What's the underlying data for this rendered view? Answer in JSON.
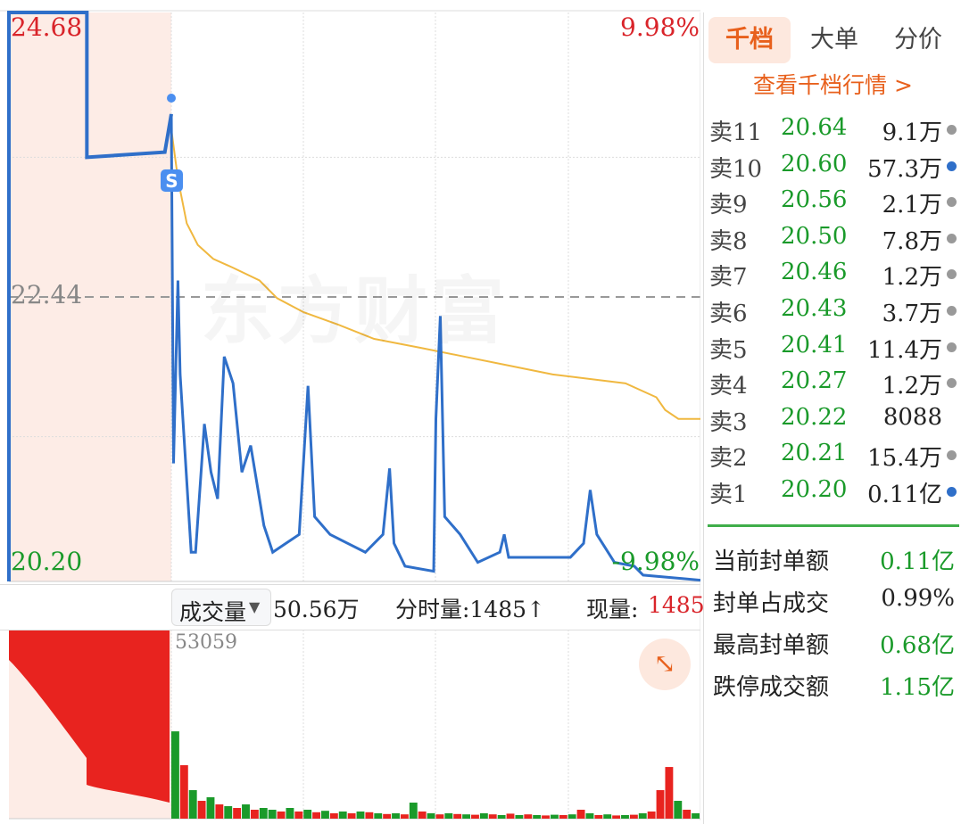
{
  "chart_data": {
    "type": "line",
    "title": "",
    "price_axis": {
      "max_label": "24.68",
      "mid_label": "22.44",
      "min_label": "20.20",
      "ylim": [
        20.2,
        24.68
      ],
      "pct_max_label": "9.98%",
      "pct_min_label": "-9.98%"
    },
    "time_range_minutes": [
      0,
      240
    ],
    "grid": true,
    "auction_series": [
      [
        0,
        20.2
      ],
      [
        0,
        24.68
      ],
      [
        4.8,
        24.68
      ],
      [
        4.8,
        23.54
      ],
      [
        9.6,
        23.58
      ],
      [
        10,
        23.88
      ]
    ],
    "price_series": [
      [
        0,
        23.88
      ],
      [
        1,
        21.13
      ],
      [
        3,
        22.57
      ],
      [
        4,
        21.83
      ],
      [
        7,
        20.99
      ],
      [
        9,
        20.43
      ],
      [
        11,
        20.43
      ],
      [
        15,
        21.44
      ],
      [
        18,
        21.06
      ],
      [
        21,
        20.85
      ],
      [
        24,
        21.97
      ],
      [
        28,
        21.76
      ],
      [
        32,
        21.06
      ],
      [
        36,
        21.27
      ],
      [
        42,
        20.64
      ],
      [
        46,
        20.43
      ],
      [
        52,
        20.5
      ],
      [
        58,
        20.57
      ],
      [
        62,
        21.74
      ],
      [
        65,
        20.71
      ],
      [
        72,
        20.57
      ],
      [
        80,
        20.5
      ],
      [
        88,
        20.43
      ],
      [
        96,
        20.57
      ],
      [
        99,
        21.09
      ],
      [
        101,
        20.5
      ],
      [
        106,
        20.32
      ],
      [
        119,
        20.28
      ],
      [
        120,
        21.48
      ],
      [
        122,
        22.29
      ],
      [
        124,
        20.71
      ],
      [
        131,
        20.57
      ],
      [
        139,
        20.35
      ],
      [
        149,
        20.43
      ],
      [
        151,
        20.57
      ],
      [
        153,
        20.39
      ],
      [
        165,
        20.39
      ],
      [
        181,
        20.39
      ],
      [
        187,
        20.5
      ],
      [
        190,
        20.92
      ],
      [
        193,
        20.57
      ],
      [
        201,
        20.35
      ],
      [
        210,
        20.32
      ],
      [
        214,
        20.25
      ],
      [
        240,
        20.21
      ]
    ],
    "avg_series": [
      [
        0,
        23.76
      ],
      [
        3,
        23.37
      ],
      [
        7,
        23.02
      ],
      [
        12,
        22.85
      ],
      [
        19,
        22.74
      ],
      [
        28,
        22.67
      ],
      [
        40,
        22.57
      ],
      [
        48,
        22.43
      ],
      [
        60,
        22.32
      ],
      [
        76,
        22.22
      ],
      [
        92,
        22.11
      ],
      [
        113,
        22.04
      ],
      [
        133,
        21.97
      ],
      [
        153,
        21.9
      ],
      [
        173,
        21.83
      ],
      [
        206,
        21.76
      ],
      [
        220,
        21.65
      ],
      [
        224,
        21.55
      ],
      [
        230,
        21.48
      ],
      [
        240,
        21.48
      ]
    ],
    "marker": "S",
    "volume": {
      "max_label": "53059",
      "max": 53059,
      "bars": [
        [
          24500,
          "g"
        ],
        [
          15000,
          "r"
        ],
        [
          8000,
          "g"
        ],
        [
          5000,
          "r"
        ],
        [
          6000,
          "g"
        ],
        [
          4000,
          "r"
        ],
        [
          3500,
          "g"
        ],
        [
          3000,
          "r"
        ],
        [
          4000,
          "g"
        ],
        [
          2500,
          "r"
        ],
        [
          3000,
          "g"
        ],
        [
          2500,
          "g"
        ],
        [
          2000,
          "r"
        ],
        [
          3000,
          "g"
        ],
        [
          2000,
          "r"
        ],
        [
          2500,
          "g"
        ],
        [
          1800,
          "r"
        ],
        [
          2200,
          "g"
        ],
        [
          1500,
          "r"
        ],
        [
          2000,
          "g"
        ],
        [
          1500,
          "r"
        ],
        [
          2000,
          "g"
        ],
        [
          1800,
          "r"
        ],
        [
          1500,
          "g"
        ],
        [
          1300,
          "r"
        ],
        [
          1500,
          "g"
        ],
        [
          1200,
          "r"
        ],
        [
          4500,
          "g"
        ],
        [
          2000,
          "r"
        ],
        [
          1500,
          "g"
        ],
        [
          1200,
          "r"
        ],
        [
          1500,
          "g"
        ],
        [
          1300,
          "r"
        ],
        [
          1200,
          "g"
        ],
        [
          1100,
          "r"
        ],
        [
          1500,
          "g"
        ],
        [
          1200,
          "r"
        ],
        [
          1000,
          "g"
        ],
        [
          1400,
          "r"
        ],
        [
          1000,
          "g"
        ],
        [
          1200,
          "r"
        ],
        [
          1000,
          "g"
        ],
        [
          900,
          "r"
        ],
        [
          1100,
          "g"
        ],
        [
          1000,
          "r"
        ],
        [
          1200,
          "g"
        ],
        [
          2500,
          "r"
        ],
        [
          1500,
          "g"
        ],
        [
          1000,
          "r"
        ],
        [
          1200,
          "g"
        ],
        [
          900,
          "r"
        ],
        [
          1000,
          "g"
        ],
        [
          1100,
          "r"
        ],
        [
          1500,
          "g"
        ],
        [
          2000,
          "r"
        ],
        [
          8000,
          "r"
        ],
        [
          14500,
          "r"
        ],
        [
          5000,
          "g"
        ],
        [
          2500,
          "r"
        ],
        [
          1500,
          "g"
        ]
      ]
    }
  },
  "watermark": "东方财富",
  "volume_bar": {
    "selector_label": "成交量",
    "total": "50.56万",
    "minute_vol": "分时量:1485↑",
    "current_label": "现量:",
    "current_value": "1485"
  },
  "panel": {
    "tabs": [
      {
        "label": "千档",
        "active": true
      },
      {
        "label": "大单"
      },
      {
        "label": "分价"
      }
    ],
    "link": "查看千档行情 >",
    "asks": [
      {
        "name": "卖11",
        "price": "20.64",
        "vol": "9.1万",
        "dot": "#999999"
      },
      {
        "name": "卖10",
        "price": "20.60",
        "vol": "57.3万",
        "dot": "#2f6fc9"
      },
      {
        "name": "卖9",
        "price": "20.56",
        "vol": "2.1万",
        "dot": "#999999"
      },
      {
        "name": "卖8",
        "price": "20.50",
        "vol": "7.8万",
        "dot": "#999999"
      },
      {
        "name": "卖7",
        "price": "20.46",
        "vol": "1.2万",
        "dot": "#999999"
      },
      {
        "name": "卖6",
        "price": "20.43",
        "vol": "3.7万",
        "dot": "#999999"
      },
      {
        "name": "卖5",
        "price": "20.41",
        "vol": "11.4万",
        "dot": "#999999"
      },
      {
        "name": "卖4",
        "price": "20.27",
        "vol": "1.2万",
        "dot": "#999999"
      },
      {
        "name": "卖3",
        "price": "20.22",
        "vol": "8088",
        "dot": ""
      },
      {
        "name": "卖2",
        "price": "20.21",
        "vol": "15.4万",
        "dot": "#999999"
      },
      {
        "name": "卖1",
        "price": "20.20",
        "vol": "0.11亿",
        "dot": "#2f6fc9"
      }
    ],
    "stats": [
      {
        "label": "当前封单额",
        "value": "0.11亿",
        "color": "#1a9a2a"
      },
      {
        "label": "封单占成交",
        "value": "0.99%",
        "color": "#222222"
      },
      {
        "label": "最高封单额",
        "value": "0.68亿",
        "color": "#1a9a2a"
      },
      {
        "label": "跌停成交额",
        "value": "1.15亿",
        "color": "#1a9a2a"
      }
    ]
  },
  "colors": {
    "price_line": "#2f6fc9",
    "avg_line": "#f0b840",
    "up": "#e8231f",
    "down": "#1a9a2a",
    "accent": "#e8601c",
    "auction_bg": "#fdece6"
  }
}
